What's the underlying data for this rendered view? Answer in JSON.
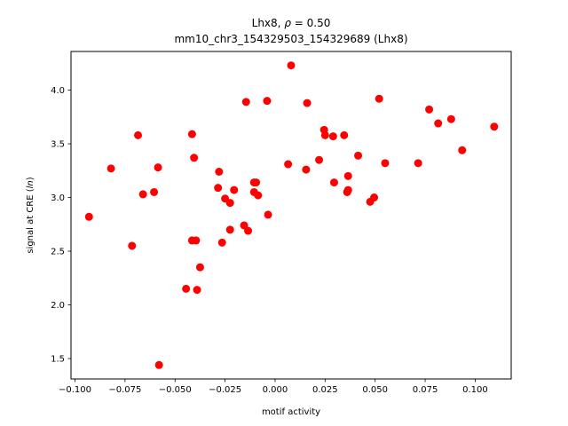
{
  "chart_data": {
    "type": "scatter",
    "title_gene": "Lhx8",
    "title_rho_label": "ρ",
    "title_rho_value": "0.50",
    "subtitle": "mm10_chr3_154329503_154329689 (Lhx8)",
    "xlabel": "motif activity",
    "ylabel_prefix": "signal at CRE (",
    "ylabel_italic": "ln",
    "ylabel_suffix": ")",
    "xlim": [
      -0.102,
      0.118
    ],
    "ylim": [
      1.31,
      4.36
    ],
    "x_ticks": [
      {
        "value": -0.1,
        "label": "−0.100"
      },
      {
        "value": -0.075,
        "label": "−0.075"
      },
      {
        "value": -0.05,
        "label": "−0.050"
      },
      {
        "value": -0.025,
        "label": "−0.025"
      },
      {
        "value": 0.0,
        "label": "0.000"
      },
      {
        "value": 0.025,
        "label": "0.025"
      },
      {
        "value": 0.05,
        "label": "0.050"
      },
      {
        "value": 0.075,
        "label": "0.075"
      },
      {
        "value": 0.1,
        "label": "0.100"
      }
    ],
    "y_ticks": [
      {
        "value": 1.5,
        "label": "1.5"
      },
      {
        "value": 2.0,
        "label": "2.0"
      },
      {
        "value": 2.5,
        "label": "2.5"
      },
      {
        "value": 3.0,
        "label": "3.0"
      },
      {
        "value": 3.5,
        "label": "3.5"
      },
      {
        "value": 4.0,
        "label": "4.0"
      }
    ],
    "grid": false,
    "marker_color": "#ff0000",
    "points": [
      {
        "x": -0.093,
        "y": 2.82
      },
      {
        "x": -0.082,
        "y": 3.27
      },
      {
        "x": -0.0715,
        "y": 2.55
      },
      {
        "x": -0.0685,
        "y": 3.58
      },
      {
        "x": -0.066,
        "y": 3.03
      },
      {
        "x": -0.0605,
        "y": 3.05
      },
      {
        "x": -0.0585,
        "y": 3.28
      },
      {
        "x": -0.058,
        "y": 1.44
      },
      {
        "x": -0.0445,
        "y": 2.15
      },
      {
        "x": -0.0415,
        "y": 2.6
      },
      {
        "x": -0.0415,
        "y": 3.59
      },
      {
        "x": -0.0405,
        "y": 3.37
      },
      {
        "x": -0.0395,
        "y": 2.6
      },
      {
        "x": -0.039,
        "y": 2.14
      },
      {
        "x": -0.0375,
        "y": 2.35
      },
      {
        "x": -0.0285,
        "y": 3.09
      },
      {
        "x": -0.028,
        "y": 3.24
      },
      {
        "x": -0.0265,
        "y": 2.58
      },
      {
        "x": -0.025,
        "y": 2.99
      },
      {
        "x": -0.0225,
        "y": 2.95
      },
      {
        "x": -0.0225,
        "y": 2.7
      },
      {
        "x": -0.0205,
        "y": 3.07
      },
      {
        "x": -0.0155,
        "y": 2.74
      },
      {
        "x": -0.0145,
        "y": 3.89
      },
      {
        "x": -0.0135,
        "y": 2.69
      },
      {
        "x": -0.0105,
        "y": 3.14
      },
      {
        "x": -0.0105,
        "y": 3.05
      },
      {
        "x": -0.0095,
        "y": 3.14
      },
      {
        "x": -0.0085,
        "y": 3.02
      },
      {
        "x": -0.004,
        "y": 3.9
      },
      {
        "x": -0.0035,
        "y": 2.84
      },
      {
        "x": 0.0065,
        "y": 3.31
      },
      {
        "x": 0.008,
        "y": 4.23
      },
      {
        "x": 0.0155,
        "y": 3.26
      },
      {
        "x": 0.016,
        "y": 3.88
      },
      {
        "x": 0.022,
        "y": 3.35
      },
      {
        "x": 0.0245,
        "y": 3.63
      },
      {
        "x": 0.025,
        "y": 3.58
      },
      {
        "x": 0.029,
        "y": 3.57
      },
      {
        "x": 0.0295,
        "y": 3.14
      },
      {
        "x": 0.0345,
        "y": 3.58
      },
      {
        "x": 0.036,
        "y": 3.05
      },
      {
        "x": 0.0365,
        "y": 3.07
      },
      {
        "x": 0.0365,
        "y": 3.2
      },
      {
        "x": 0.0415,
        "y": 3.39
      },
      {
        "x": 0.0475,
        "y": 2.96
      },
      {
        "x": 0.0495,
        "y": 3.0
      },
      {
        "x": 0.052,
        "y": 3.92
      },
      {
        "x": 0.055,
        "y": 3.32
      },
      {
        "x": 0.0715,
        "y": 3.32
      },
      {
        "x": 0.077,
        "y": 3.82
      },
      {
        "x": 0.0815,
        "y": 3.69
      },
      {
        "x": 0.088,
        "y": 3.73
      },
      {
        "x": 0.0935,
        "y": 3.44
      },
      {
        "x": 0.1095,
        "y": 3.66
      }
    ]
  }
}
